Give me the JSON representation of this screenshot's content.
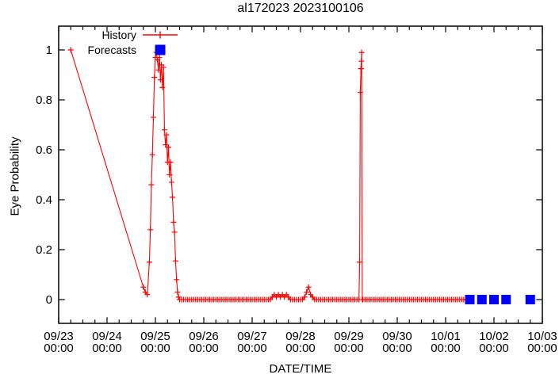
{
  "title": "al172023 2023100106",
  "colors": {
    "history": "#ff0000",
    "forecast": "#0000ff",
    "axis": "#000000",
    "background": "#ffffff"
  },
  "chart_data": {
    "type": "line",
    "title": "al172023 2023100106",
    "xlabel": "DATE/TIME",
    "ylabel": "Eye Probability",
    "x_range": [
      "09/23 00:00",
      "10/03 00:00"
    ],
    "ylim": [
      -0.095,
      1.095
    ],
    "grid": false,
    "legend_position": "top-left-inside",
    "x_ticks": [
      [
        "09/23",
        "00:00"
      ],
      [
        "09/24",
        "00:00"
      ],
      [
        "09/25",
        "00:00"
      ],
      [
        "09/26",
        "00:00"
      ],
      [
        "09/27",
        "00:00"
      ],
      [
        "09/28",
        "00:00"
      ],
      [
        "09/29",
        "00:00"
      ],
      [
        "09/30",
        "00:00"
      ],
      [
        "10/01",
        "00:00"
      ],
      [
        "10/02",
        "00:00"
      ],
      [
        "10/03",
        "00:00"
      ]
    ],
    "x_minor_ticks_per_day": 4,
    "y_ticks": [
      {
        "v": 0,
        "label": "0"
      },
      {
        "v": 0.2,
        "label": "0.2"
      },
      {
        "v": 0.4,
        "label": "0.4"
      },
      {
        "v": 0.6,
        "label": "0.6"
      },
      {
        "v": 0.8,
        "label": "0.8"
      },
      {
        "v": 1,
        "label": "1"
      }
    ],
    "legend": [
      {
        "name": "History",
        "color": "#ff0000",
        "marker": "line-with-plus"
      },
      {
        "name": "Forecasts",
        "color": "#0000ff",
        "marker": "filled-square"
      }
    ],
    "series": [
      {
        "name": "History",
        "type": "line+plus",
        "color": "#ff0000",
        "points": [
          [
            "09/23 06:00",
            1.0
          ],
          [
            "09/24 18:00",
            0.05
          ],
          [
            "09/24 19:00",
            0.03
          ],
          [
            "09/24 20:00",
            0.02
          ],
          [
            "09/24 21:00",
            0.15
          ],
          [
            "09/24 21:30",
            0.28
          ],
          [
            "09/24 22:00",
            0.46
          ],
          [
            "09/24 22:30",
            0.58
          ],
          [
            "09/24 23:00",
            0.73
          ],
          [
            "09/24 23:30",
            0.89
          ],
          [
            "09/25 00:00",
            0.97
          ],
          [
            "09/25 00:30",
            0.99
          ],
          [
            "09/25 01:00",
            0.96
          ],
          [
            "09/25 01:30",
            0.92
          ],
          [
            "09/25 02:00",
            0.97
          ],
          [
            "09/25 02:30",
            0.88
          ],
          [
            "09/25 03:00",
            0.94
          ],
          [
            "09/25 03:30",
            0.85
          ],
          [
            "09/25 04:00",
            0.93
          ],
          [
            "09/25 04:30",
            0.68
          ],
          [
            "09/25 05:00",
            0.62
          ],
          [
            "09/25 05:30",
            0.66
          ],
          [
            "09/25 06:00",
            0.55
          ],
          [
            "09/25 06:30",
            0.61
          ],
          [
            "09/25 07:00",
            0.5
          ],
          [
            "09/25 07:30",
            0.55
          ],
          [
            "09/25 08:00",
            0.47
          ],
          [
            "09/25 08:30",
            0.41
          ],
          [
            "09/25 09:00",
            0.31
          ],
          [
            "09/25 09:30",
            0.27
          ],
          [
            "09/25 10:00",
            0.155
          ],
          [
            "09/25 10:30",
            0.08
          ],
          [
            "09/25 11:00",
            0.03
          ],
          [
            "09/25 11:30",
            0.01
          ],
          [
            "09/27 10:00",
            0.01
          ],
          [
            "09/27 11:00",
            0.02
          ],
          [
            "09/27 12:00",
            0.01
          ],
          [
            "09/27 13:00",
            0.02
          ],
          [
            "09/27 14:00",
            0.01
          ],
          [
            "09/27 15:00",
            0.02
          ],
          [
            "09/27 16:00",
            0.01
          ],
          [
            "09/27 17:00",
            0.02
          ],
          [
            "09/27 18:00",
            0.01
          ],
          [
            "09/28 02:00",
            0.01
          ],
          [
            "09/28 03:00",
            0.03
          ],
          [
            "09/28 04:00",
            0.05
          ],
          [
            "09/28 05:00",
            0.02
          ],
          [
            "09/28 06:00",
            0.01
          ],
          [
            "09/29 05:20",
            0.15
          ],
          [
            "09/29 05:40",
            0.83
          ],
          [
            "09/29 06:00",
            0.925
          ],
          [
            "09/29 06:10",
            0.955
          ],
          [
            "09/29 06:20",
            0.99
          ],
          [
            "09/29 06:40",
            0.0
          ]
        ],
        "zero_runs": [
          {
            "from": "09/25 12:00",
            "to": "09/27 09:00",
            "step_hours": 1,
            "value": 0
          },
          {
            "from": "09/27 19:00",
            "to": "09/28 01:00",
            "step_hours": 1,
            "value": 0
          },
          {
            "from": "09/28 07:00",
            "to": "09/29 05:00",
            "step_hours": 1,
            "value": 0
          },
          {
            "from": "09/29 07:00",
            "to": "10/01 09:00",
            "step_hours": 1,
            "value": 0
          }
        ]
      },
      {
        "name": "Forecasts",
        "type": "squares",
        "color": "#0000ff",
        "points": [
          [
            "10/01 12:00",
            0
          ],
          [
            "10/01 18:00",
            0
          ],
          [
            "10/02 00:00",
            0
          ],
          [
            "10/02 06:00",
            0
          ],
          [
            "10/02 18:00",
            0
          ]
        ]
      }
    ]
  }
}
